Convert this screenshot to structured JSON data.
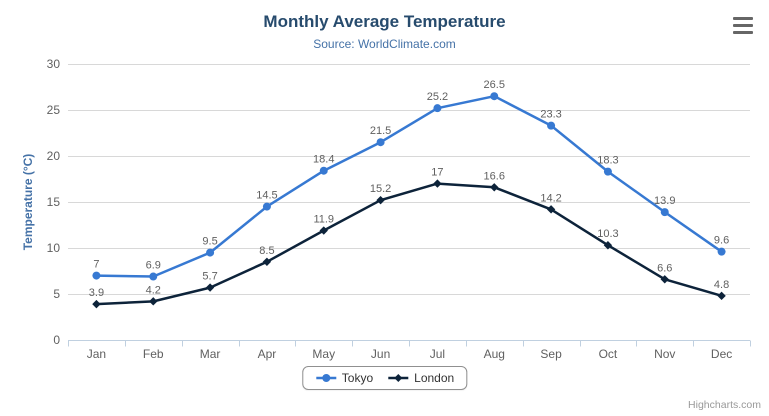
{
  "chart_data": {
    "type": "line",
    "title": "Monthly Average Temperature",
    "subtitle": "Source: WorldClimate.com",
    "categories": [
      "Jan",
      "Feb",
      "Mar",
      "Apr",
      "May",
      "Jun",
      "Jul",
      "Aug",
      "Sep",
      "Oct",
      "Nov",
      "Dec"
    ],
    "series": [
      {
        "name": "Tokyo",
        "color": "#3779d2",
        "marker": "circle",
        "values": [
          7,
          6.9,
          9.5,
          14.5,
          18.4,
          21.5,
          25.2,
          26.5,
          23.3,
          18.3,
          13.9,
          9.6
        ]
      },
      {
        "name": "London",
        "color": "#0d233a",
        "marker": "diamond",
        "values": [
          3.9,
          4.2,
          5.7,
          8.5,
          11.9,
          15.2,
          17,
          16.6,
          14.2,
          10.3,
          6.6,
          4.8
        ]
      }
    ],
    "xlabel": "",
    "ylabel": "Temperature (°C)",
    "ylim": [
      0,
      30
    ],
    "ytick_step": 5,
    "grid": true,
    "data_labels": true,
    "legend_position": "bottom"
  },
  "icons": {
    "export_menu": "hamburger-icon"
  },
  "styles": {
    "grid_color": "#d8d8d8",
    "axis_line_color": "#c0d0e0",
    "axis_label_color": "#606060",
    "data_label_color": "#606060",
    "axis_title_color": "#4572a7",
    "title_color": "#274b6d",
    "subtitle_color": "#4572a7"
  },
  "credits_label": "Highcharts.com"
}
